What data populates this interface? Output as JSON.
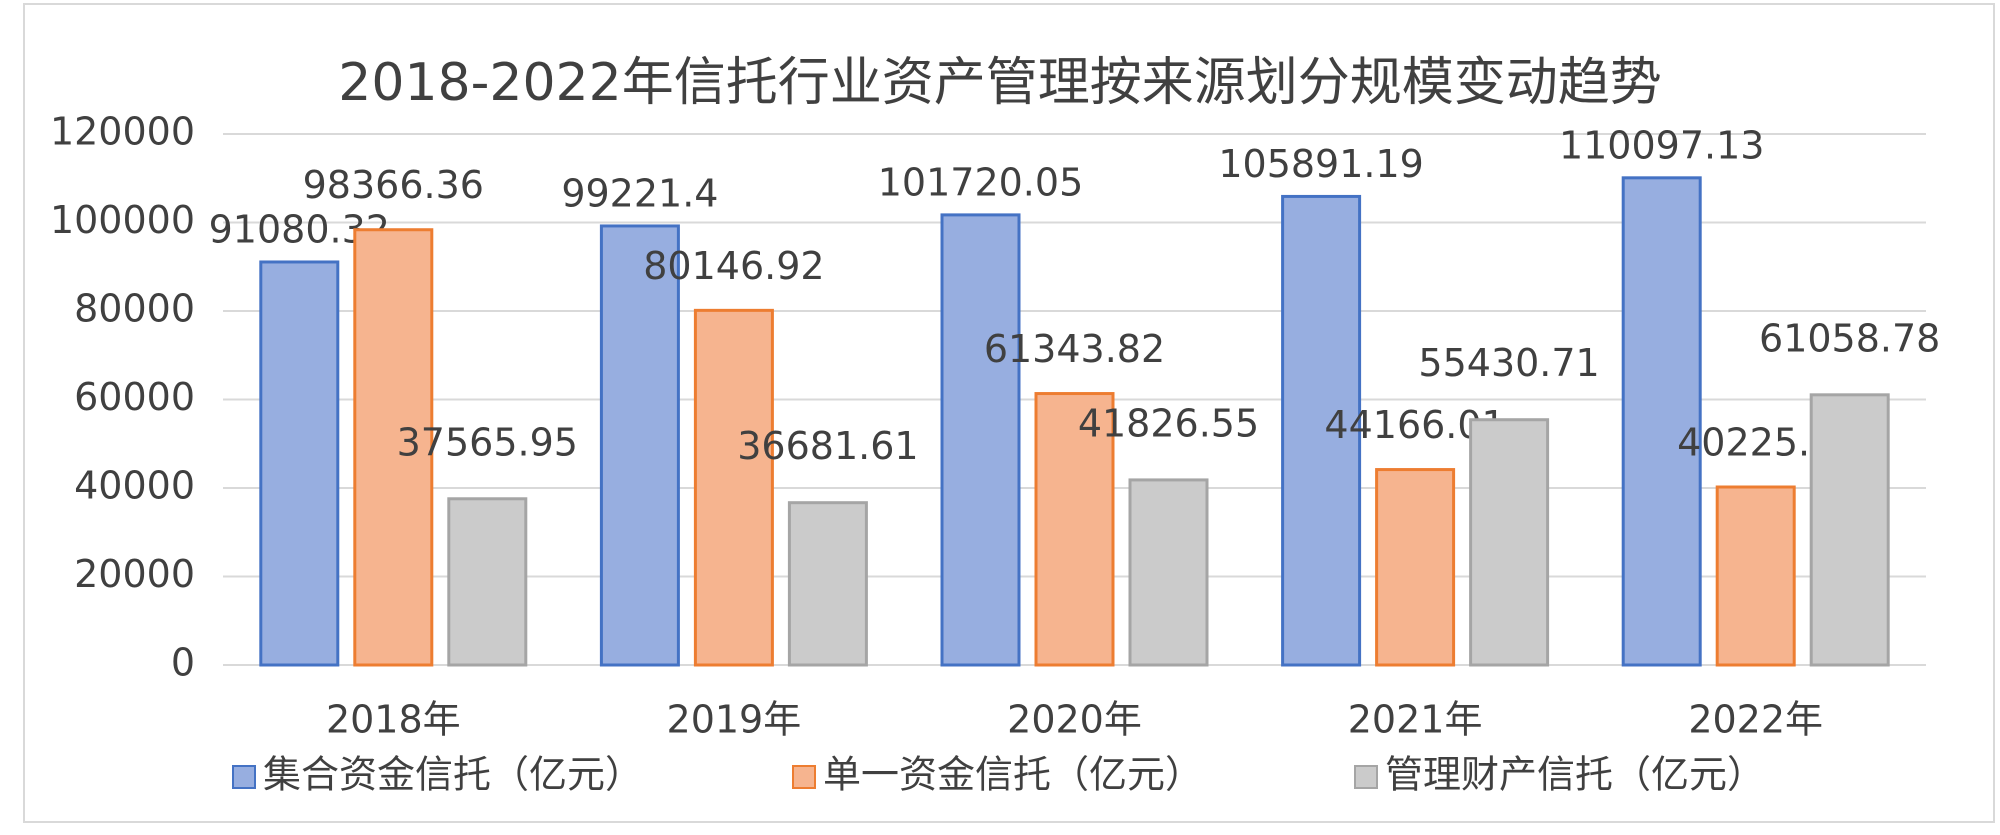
{
  "chart_data": {
    "type": "bar",
    "title": "2018-2022年信托行业资产管理按来源划分规模变动趋势",
    "categories": [
      "2018年",
      "2019年",
      "2020年",
      "2021年",
      "2022年"
    ],
    "series": [
      {
        "name": "集合资金信托（亿元）",
        "color": "#97aee0",
        "edge_color": "#4472c4",
        "values": [
          91080.32,
          99221.4,
          101720.05,
          105891.19,
          110097.13
        ]
      },
      {
        "name": "单一资金信托（亿元）",
        "color": "#f6b48f",
        "edge_color": "#ed7d31",
        "values": [
          98366.36,
          80146.92,
          61343.82,
          44166.01,
          40225.5
        ]
      },
      {
        "name": "管理财产信托（亿元）",
        "color": "#cbcbcb",
        "edge_color": "#a5a5a5",
        "values": [
          37565.95,
          36681.61,
          41826.55,
          55430.71,
          61058.78
        ]
      }
    ],
    "ylim": [
      0,
      120000
    ],
    "yticks": [
      0,
      20000,
      40000,
      60000,
      80000,
      100000,
      120000
    ],
    "grid": true,
    "legend": "bottom"
  }
}
